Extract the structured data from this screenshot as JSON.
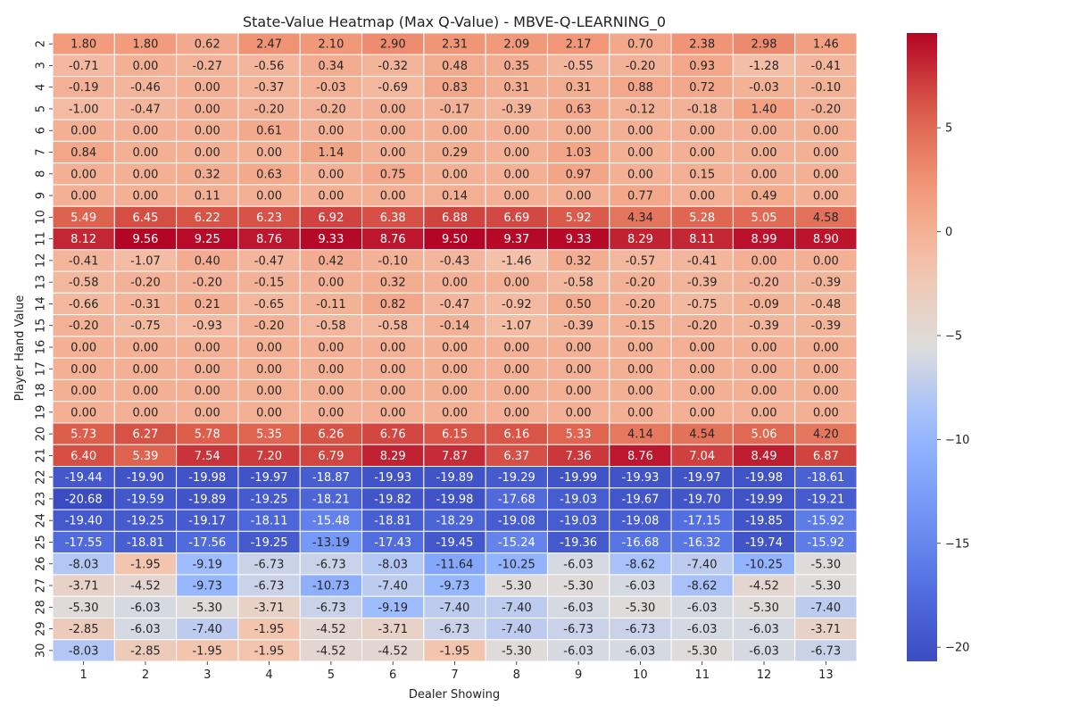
{
  "chart_data": {
    "type": "heatmap",
    "title": "State-Value Heatmap (Max Q-Value) - MBVE-Q-LEARNING_0",
    "xlabel": "Dealer Showing",
    "ylabel": "Player Hand Value",
    "x": [
      "1",
      "2",
      "3",
      "4",
      "5",
      "6",
      "7",
      "8",
      "9",
      "10",
      "11",
      "12",
      "13"
    ],
    "y": [
      "2",
      "3",
      "4",
      "5",
      "6",
      "7",
      "8",
      "9",
      "10",
      "11",
      "12",
      "13",
      "14",
      "15",
      "16",
      "17",
      "18",
      "19",
      "20",
      "21",
      "22",
      "23",
      "24",
      "25",
      "26",
      "27",
      "28",
      "29",
      "30"
    ],
    "values": [
      [
        1.8,
        1.8,
        0.62,
        2.47,
        2.1,
        2.9,
        2.31,
        2.09,
        2.17,
        0.7,
        2.38,
        2.98,
        1.46
      ],
      [
        -0.71,
        0.0,
        -0.27,
        -0.56,
        0.34,
        -0.32,
        0.48,
        0.35,
        -0.55,
        -0.2,
        0.93,
        -1.28,
        -0.41
      ],
      [
        -0.19,
        -0.46,
        0.0,
        -0.37,
        -0.03,
        -0.69,
        0.83,
        0.31,
        0.31,
        0.88,
        0.72,
        -0.03,
        -0.1
      ],
      [
        -1.0,
        -0.47,
        0.0,
        -0.2,
        -0.2,
        0.0,
        -0.17,
        -0.39,
        0.63,
        -0.12,
        -0.18,
        1.4,
        -0.2
      ],
      [
        0.0,
        0.0,
        0.0,
        0.61,
        0.0,
        0.0,
        0.0,
        0.0,
        0.0,
        0.0,
        0.0,
        0.0,
        0.0
      ],
      [
        0.84,
        0.0,
        0.0,
        0.0,
        1.14,
        0.0,
        0.29,
        0.0,
        1.03,
        0.0,
        0.0,
        0.0,
        0.0
      ],
      [
        0.0,
        0.0,
        0.32,
        0.63,
        0.0,
        0.75,
        0.0,
        0.0,
        0.97,
        0.0,
        0.15,
        0.0,
        0.0
      ],
      [
        0.0,
        0.0,
        0.11,
        0.0,
        0.0,
        0.0,
        0.14,
        0.0,
        0.0,
        0.77,
        0.0,
        0.49,
        0.0
      ],
      [
        5.49,
        6.45,
        6.22,
        6.23,
        6.92,
        6.38,
        6.88,
        6.69,
        5.92,
        4.34,
        5.28,
        5.05,
        4.58
      ],
      [
        8.12,
        9.56,
        9.25,
        8.76,
        9.33,
        8.76,
        9.5,
        9.37,
        9.33,
        8.29,
        8.11,
        8.99,
        8.9
      ],
      [
        -0.41,
        -1.07,
        0.4,
        -0.47,
        0.42,
        -0.1,
        -0.43,
        -1.46,
        0.32,
        -0.57,
        -0.41,
        0.0,
        0.0
      ],
      [
        -0.58,
        -0.2,
        -0.2,
        -0.15,
        0.0,
        0.32,
        0.0,
        0.0,
        -0.58,
        -0.2,
        -0.39,
        -0.2,
        -0.39
      ],
      [
        -0.66,
        -0.31,
        0.21,
        -0.65,
        -0.11,
        0.82,
        -0.47,
        -0.92,
        0.5,
        -0.2,
        -0.75,
        -0.09,
        -0.48
      ],
      [
        -0.2,
        -0.75,
        -0.93,
        -0.2,
        -0.58,
        -0.58,
        -0.14,
        -1.07,
        -0.39,
        -0.15,
        -0.2,
        -0.39,
        -0.39
      ],
      [
        0.0,
        0.0,
        0.0,
        0.0,
        0.0,
        0.0,
        0.0,
        0.0,
        0.0,
        0.0,
        0.0,
        0.0,
        0.0
      ],
      [
        0.0,
        0.0,
        0.0,
        0.0,
        0.0,
        0.0,
        0.0,
        0.0,
        0.0,
        0.0,
        0.0,
        0.0,
        0.0
      ],
      [
        0.0,
        0.0,
        0.0,
        0.0,
        0.0,
        0.0,
        0.0,
        0.0,
        0.0,
        0.0,
        0.0,
        0.0,
        0.0
      ],
      [
        0.0,
        0.0,
        0.0,
        0.0,
        0.0,
        0.0,
        0.0,
        0.0,
        0.0,
        0.0,
        0.0,
        0.0,
        0.0
      ],
      [
        5.73,
        6.27,
        5.78,
        5.35,
        6.26,
        6.76,
        6.15,
        6.16,
        5.33,
        4.14,
        4.54,
        5.06,
        4.2
      ],
      [
        6.4,
        5.39,
        7.54,
        7.2,
        6.79,
        8.29,
        7.87,
        6.37,
        7.36,
        8.76,
        7.04,
        8.49,
        6.87
      ],
      [
        -19.44,
        -19.9,
        -19.98,
        -19.97,
        -18.87,
        -19.93,
        -19.89,
        -19.29,
        -19.99,
        -19.93,
        -19.97,
        -19.98,
        -18.61
      ],
      [
        -20.68,
        -19.59,
        -19.89,
        -19.25,
        -18.21,
        -19.82,
        -19.98,
        -17.68,
        -19.03,
        -19.67,
        -19.7,
        -19.99,
        -19.21
      ],
      [
        -19.4,
        -19.25,
        -19.17,
        -18.11,
        -15.48,
        -18.81,
        -18.29,
        -19.08,
        -19.03,
        -19.08,
        -17.15,
        -19.85,
        -15.92
      ],
      [
        -17.55,
        -18.81,
        -17.56,
        -19.25,
        -13.19,
        -17.43,
        -19.45,
        -15.24,
        -19.36,
        -16.68,
        -16.32,
        -19.74,
        -15.92
      ],
      [
        -8.03,
        -1.95,
        -9.19,
        -6.73,
        -6.73,
        -8.03,
        -11.64,
        -10.25,
        -6.03,
        -8.62,
        -7.4,
        -10.25,
        -5.3
      ],
      [
        -3.71,
        -4.52,
        -9.73,
        -6.73,
        -10.73,
        -7.4,
        -9.73,
        -5.3,
        -5.3,
        -6.03,
        -8.62,
        -4.52,
        -5.3
      ],
      [
        -5.3,
        -6.03,
        -5.3,
        -3.71,
        -6.73,
        -9.19,
        -7.4,
        -7.4,
        -6.03,
        -5.3,
        -6.03,
        -5.3,
        -7.4
      ],
      [
        -2.85,
        -6.03,
        -7.4,
        -1.95,
        -4.52,
        -3.71,
        -6.73,
        -7.4,
        -6.73,
        -6.73,
        -6.03,
        -6.03,
        -3.71
      ],
      [
        -8.03,
        -2.85,
        -1.95,
        -1.95,
        -4.52,
        -4.52,
        -1.95,
        -5.3,
        -6.03,
        -6.03,
        -5.3,
        -6.03,
        -6.73
      ]
    ],
    "colormap": "coolwarm",
    "vmin": -20.68,
    "vmax": 9.56,
    "colorbar_ticks": [
      "5",
      "0",
      "−5",
      "−10",
      "−15",
      "−20"
    ],
    "colorbar_tick_values": [
      5,
      0,
      -5,
      -10,
      -15,
      -20
    ]
  }
}
